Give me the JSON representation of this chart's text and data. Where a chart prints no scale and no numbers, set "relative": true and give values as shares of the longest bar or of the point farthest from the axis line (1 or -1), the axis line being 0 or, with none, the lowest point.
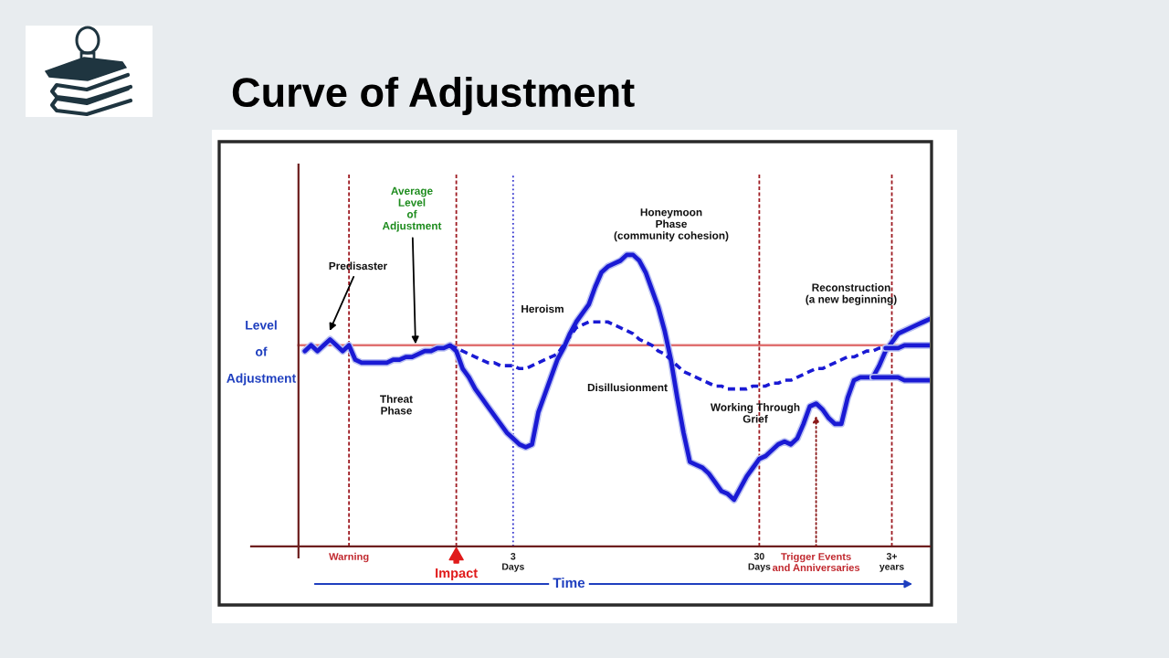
{
  "chart_data": {
    "type": "line",
    "title": "Curve of Adjustment",
    "xlabel": "Time",
    "ylabel": "Level\nof\nAdjustment",
    "relative": true,
    "line_style": "solid",
    "categories": [
      null,
      null,
      null,
      null,
      null,
      null,
      null,
      null,
      "Warning",
      null,
      null,
      null,
      null,
      null,
      null,
      null,
      null,
      null,
      null,
      null,
      null,
      null,
      null,
      null,
      null,
      "Impact",
      null,
      null,
      null,
      null,
      null,
      null,
      null,
      null,
      "3\nDays",
      null,
      null,
      null,
      null,
      null,
      null,
      null,
      null,
      null,
      null,
      null,
      null,
      null,
      null,
      null,
      null,
      null,
      null,
      null,
      null,
      null,
      null,
      null,
      null,
      null,
      null,
      null,
      null,
      null,
      null,
      null,
      null,
      null,
      null,
      null,
      null,
      null,
      null,
      "30\nDays",
      null,
      null,
      null,
      null,
      null,
      null,
      null,
      null,
      "Trigger Events\nand Anniversaries",
      null,
      null,
      null,
      null,
      null,
      null,
      null,
      null,
      null,
      null,
      null,
      "3+\nyears",
      null,
      null,
      null,
      null,
      null,
      null
    ],
    "series": [
      {
        "color": "#1a1ad4",
        "values": [
          null,
          0.67,
          0.69,
          0.67,
          0.69,
          0.71,
          0.69,
          0.67,
          0.69,
          0.64,
          0.63,
          0.63,
          0.63,
          0.63,
          0.63,
          0.64,
          0.64,
          0.65,
          0.65,
          0.66,
          0.67,
          0.67,
          0.68,
          0.68,
          0.69,
          0.67,
          0.61,
          0.58,
          0.54,
          0.51,
          0.48,
          0.45,
          0.42,
          0.39,
          0.37,
          0.35,
          0.34,
          0.35,
          0.46,
          0.52,
          0.58,
          0.64,
          0.68,
          0.73,
          0.77,
          0.8,
          0.83,
          0.89,
          0.94,
          0.96,
          0.97,
          0.98,
          1.0,
          1.0,
          0.98,
          0.94,
          0.88,
          0.82,
          0.74,
          0.64,
          0.51,
          0.39,
          0.29,
          0.28,
          0.27,
          0.25,
          0.22,
          0.19,
          0.18,
          0.16,
          0.2,
          0.24,
          0.27,
          0.3,
          0.31,
          0.33,
          0.35,
          0.36,
          0.35,
          0.37,
          0.42,
          0.48,
          0.49,
          0.47,
          0.44,
          0.42,
          0.42,
          0.51,
          0.57,
          0.58,
          0.58,
          0.58,
          0.62,
          0.67,
          0.7,
          0.73,
          0.74,
          0.75,
          0.76,
          0.77,
          0.78
        ]
      },
      {
        "color": "#1a1ad4",
        "line_style": "dashed",
        "values": [
          null,
          null,
          null,
          null,
          null,
          null,
          null,
          null,
          null,
          null,
          null,
          null,
          null,
          null,
          null,
          null,
          null,
          null,
          null,
          null,
          null,
          null,
          null,
          null,
          0.69,
          0.68,
          0.67,
          0.66,
          0.65,
          0.64,
          0.63,
          0.63,
          0.62,
          0.62,
          0.62,
          0.61,
          0.61,
          0.62,
          0.63,
          0.64,
          0.65,
          0.66,
          0.69,
          0.72,
          0.75,
          0.76,
          0.77,
          0.77,
          0.77,
          0.77,
          0.76,
          0.75,
          0.74,
          0.73,
          0.71,
          0.7,
          0.69,
          0.67,
          0.66,
          0.64,
          0.62,
          0.6,
          0.59,
          0.58,
          0.57,
          0.56,
          0.55,
          0.55,
          0.54,
          0.54,
          0.54,
          0.54,
          0.55,
          0.55,
          0.55,
          0.56,
          0.56,
          0.57,
          0.57,
          0.58,
          0.59,
          0.6,
          0.61,
          0.61,
          0.62,
          0.63,
          0.64,
          0.65,
          0.65,
          0.66,
          0.67,
          0.67,
          0.68,
          0.68,
          null,
          null,
          null,
          null,
          null,
          null,
          null
        ]
      },
      {
        "color": "#1a1ad4",
        "values": [
          null,
          null,
          null,
          null,
          null,
          null,
          null,
          null,
          null,
          null,
          null,
          null,
          null,
          null,
          null,
          null,
          null,
          null,
          null,
          null,
          null,
          null,
          null,
          null,
          null,
          null,
          null,
          null,
          null,
          null,
          null,
          null,
          null,
          null,
          null,
          null,
          null,
          null,
          null,
          null,
          null,
          null,
          null,
          null,
          null,
          null,
          null,
          null,
          null,
          null,
          null,
          null,
          null,
          null,
          null,
          null,
          null,
          null,
          null,
          null,
          null,
          null,
          null,
          null,
          null,
          null,
          null,
          null,
          null,
          null,
          null,
          null,
          null,
          null,
          null,
          null,
          null,
          null,
          null,
          null,
          null,
          null,
          null,
          null,
          null,
          null,
          null,
          null,
          null,
          null,
          null,
          null,
          null,
          0.68,
          0.68,
          0.68,
          0.69,
          0.69,
          0.69,
          0.69,
          0.69
        ]
      },
      {
        "color": "#1a1ad4",
        "values": [
          null,
          null,
          null,
          null,
          null,
          null,
          null,
          null,
          null,
          null,
          null,
          null,
          null,
          null,
          null,
          null,
          null,
          null,
          null,
          null,
          null,
          null,
          null,
          null,
          null,
          null,
          null,
          null,
          null,
          null,
          null,
          null,
          null,
          null,
          null,
          null,
          null,
          null,
          null,
          null,
          null,
          null,
          null,
          null,
          null,
          null,
          null,
          null,
          null,
          null,
          null,
          null,
          null,
          null,
          null,
          null,
          null,
          null,
          null,
          null,
          null,
          null,
          null,
          null,
          null,
          null,
          null,
          null,
          null,
          null,
          null,
          null,
          null,
          null,
          null,
          null,
          null,
          null,
          null,
          null,
          null,
          null,
          null,
          null,
          null,
          null,
          null,
          null,
          null,
          null,
          null,
          0.58,
          0.58,
          0.58,
          0.58,
          0.58,
          0.57,
          0.57,
          0.57,
          0.57,
          0.57
        ]
      }
    ],
    "ref_lines": [
      {
        "axis": "y",
        "value": 0.69,
        "color": "#e07070",
        "label": "Average\nLevel\nof\nAdjustment"
      },
      {
        "axis": "x",
        "value": "Warning",
        "color": "#9e1b22",
        "line_style": "dashed"
      },
      {
        "axis": "x",
        "value": "Impact",
        "color": "#9e1b22",
        "line_style": "dashed"
      },
      {
        "axis": "x",
        "value": "3\nDays",
        "color": "#3b3bd0",
        "line_style": "dotted"
      },
      {
        "axis": "x",
        "value": "30\nDays",
        "color": "#9e1b22",
        "line_style": "dashed"
      },
      {
        "axis": "x",
        "value": "3+\nyears",
        "color": "#9e1b22",
        "line_style": "dashed"
      }
    ],
    "annotations": [
      "Predisaster",
      "Threat\nPhase",
      "Heroism",
      "Honeymoon\nPhase\n(community cohesion)",
      "Disillusionment",
      "Working Through\nGrief",
      "Reconstruction\n(a new beginning)"
    ]
  }
}
